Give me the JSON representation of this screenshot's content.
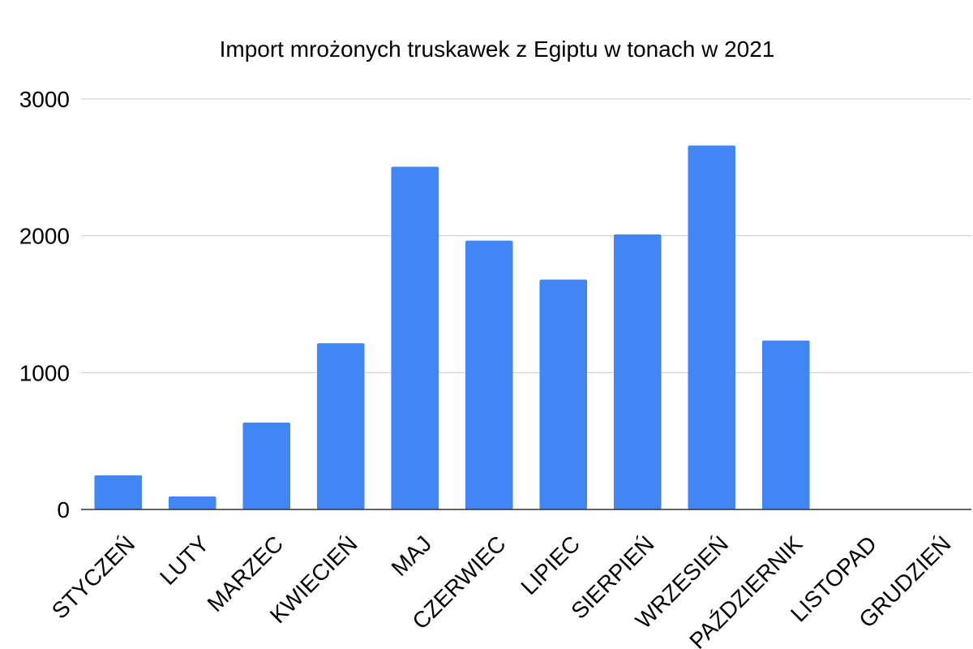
{
  "chart_data": {
    "type": "bar",
    "title": "Import mrożonych truskawek z Egiptu w tonach w 2021",
    "xlabel": "",
    "ylabel": "",
    "categories": [
      "STYCZEŃ",
      "LUTY",
      "MARZEC",
      "KWIECIEŃ",
      "MAJ",
      "CZERWIEC",
      "LIPIEC",
      "SIERPIEŃ",
      "WRZESIEŃ",
      "PAŹDZIERNIK",
      "LISTOPAD",
      "GRUDZIEŃ"
    ],
    "values": [
      250,
      95,
      635,
      1215,
      2505,
      1965,
      1680,
      2010,
      2660,
      1235,
      0,
      0
    ],
    "ylim": [
      0,
      3000
    ],
    "yticks": [
      0,
      1000,
      2000,
      3000
    ],
    "grid": true,
    "legend": "none",
    "bar_color": "#4285f4"
  }
}
